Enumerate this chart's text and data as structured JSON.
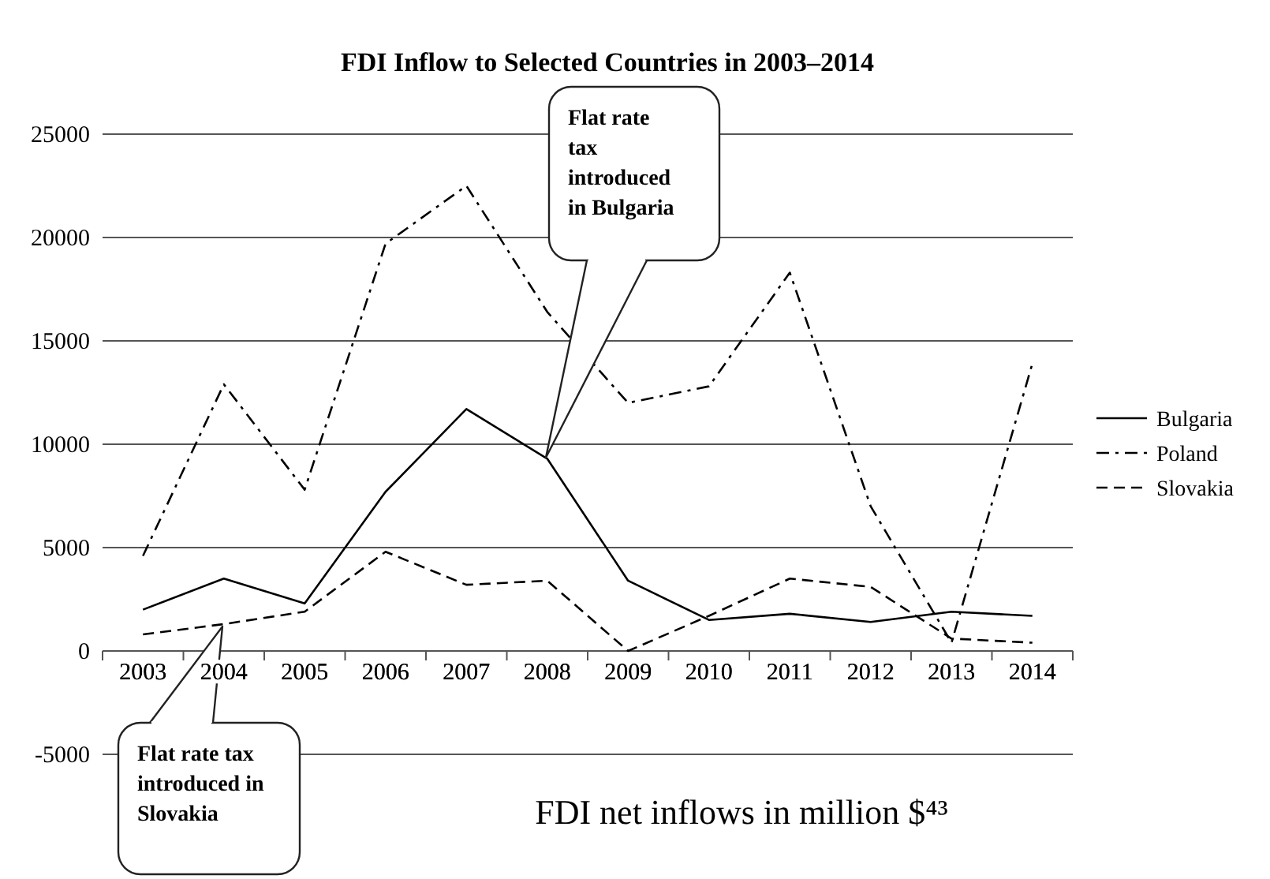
{
  "chart_data": {
    "type": "line",
    "title": "FDI Inflow to Selected Countries in 2003–2014",
    "categories": [
      "2003",
      "2004",
      "2005",
      "2006",
      "2007",
      "2008",
      "2009",
      "2010",
      "2011",
      "2012",
      "2013",
      "2014"
    ],
    "series": [
      {
        "name": "Bulgaria",
        "color": "#000000",
        "line_style": "solid",
        "values": [
          2000,
          3500,
          2300,
          7700,
          11700,
          9300,
          3400,
          1500,
          1800,
          1400,
          1900,
          1700
        ]
      },
      {
        "name": "Poland",
        "color": "#000000",
        "line_style": "dashdot",
        "values": [
          4600,
          12900,
          7800,
          19700,
          22500,
          16400,
          12000,
          12800,
          18300,
          7000,
          400,
          13900
        ]
      },
      {
        "name": "Slovakia",
        "color": "#000000",
        "line_style": "dashed",
        "values": [
          800,
          1300,
          1900,
          4800,
          3200,
          3400,
          0,
          1700,
          3500,
          3100,
          600,
          400
        ]
      }
    ],
    "ylim": [
      -5000,
      25000
    ],
    "yticks": [
      -5000,
      0,
      5000,
      10000,
      15000,
      20000,
      25000
    ],
    "grid": "y",
    "legend": "right",
    "marker": "none",
    "annotations": [
      "Flat rate tax introduced in Bulgaria",
      "Flat rate tax introduced in Slovakia",
      "FDI net inflows in million $⁴³"
    ]
  }
}
